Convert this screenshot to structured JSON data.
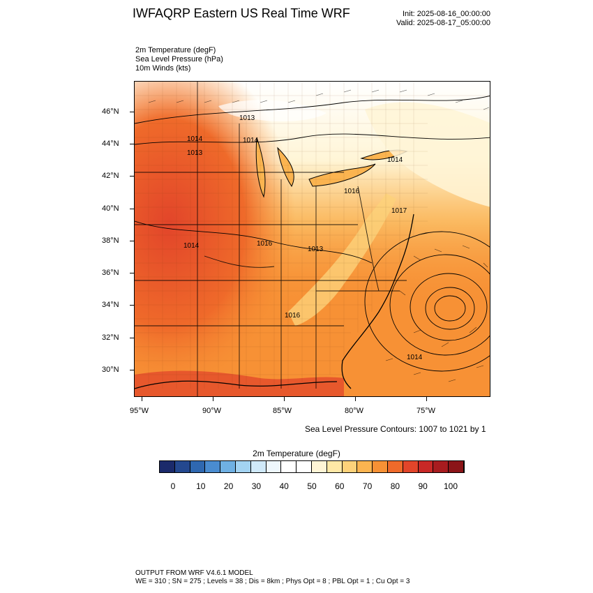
{
  "header": {
    "title": "IWFAQRP Eastern US Real Time WRF",
    "init": "Init: 2025-08-16_00:00:00",
    "valid": "Valid: 2025-08-17_05:00:00"
  },
  "variables": {
    "temp": "2m Temperature   (degF)",
    "slp": "Sea Level Pressure   (hPa)",
    "winds": "10m Winds   (kts)"
  },
  "map": {
    "lat_labels": [
      "46°N",
      "44°N",
      "42°N",
      "40°N",
      "38°N",
      "36°N",
      "34°N",
      "32°N",
      "30°N"
    ],
    "lon_labels": [
      "95°W",
      "90°W",
      "85°W",
      "80°W",
      "75°W"
    ],
    "pressure_labels": [
      "1013",
      "1014",
      "1013",
      "1014",
      "1016",
      "1017",
      "1014",
      "1016",
      "1014",
      "1013",
      "1016",
      "1014"
    ],
    "contour_note": "Sea Level Pressure Contours: 1007 to 1021 by 1"
  },
  "colorbar": {
    "title": "2m Temperature   (degF)",
    "ticks": [
      "0",
      "10",
      "20",
      "30",
      "40",
      "50",
      "60",
      "70",
      "80",
      "90",
      "100"
    ],
    "colors": [
      "#1b2a6b",
      "#24488f",
      "#2f68b0",
      "#4a8cd0",
      "#6fb0e3",
      "#a3d3f2",
      "#cfe9f9",
      "#eef7fc",
      "#ffffff",
      "#ffffff",
      "#fff5d6",
      "#ffe8a6",
      "#fdd27a",
      "#fbb450",
      "#f79135",
      "#ef6a2a",
      "#e2452a",
      "#c82826",
      "#a81c1f",
      "#8b1518"
    ]
  },
  "footer": {
    "line1": "OUTPUT FROM WRF V4.6.1 MODEL",
    "line2": "WE = 310 ; SN = 275 ; Levels = 38 ; Dis = 8km ; Phys Opt = 8 ; PBL Opt = 1 ; Cu Opt = 3"
  }
}
